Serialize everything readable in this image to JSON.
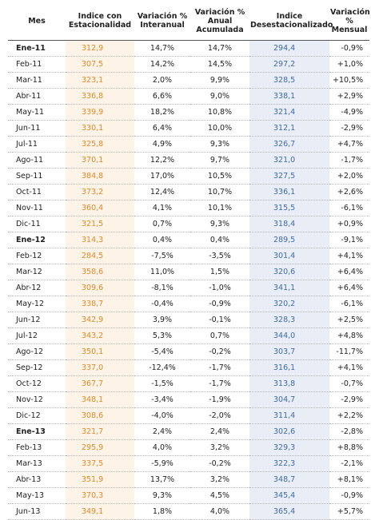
{
  "table": {
    "headers": [
      "Mes",
      "Indice con Estacionalidad",
      "Variación % Interanual",
      "Variación % Anual Acumulada",
      "Indice Desestacionalizado",
      "Variación % Mensual"
    ],
    "bold_rows": [
      0,
      12,
      24
    ],
    "rows": [
      [
        "Ene-11",
        "312,9",
        "14,7%",
        "14,7%",
        "294,4",
        "-0,9%"
      ],
      [
        "Feb-11",
        "307,5",
        "14,2%",
        "14,5%",
        "297,2",
        "+1,0%"
      ],
      [
        "Mar-11",
        "323,1",
        "2,0%",
        "9,9%",
        "328,5",
        "+10,5%"
      ],
      [
        "Abr-11",
        "336,8",
        "6,6%",
        "9,0%",
        "338,1",
        "+2,9%"
      ],
      [
        "May-11",
        "339,9",
        "18,2%",
        "10,8%",
        "321,4",
        "-4,9%"
      ],
      [
        "Jun-11",
        "330,1",
        "6,4%",
        "10,0%",
        "312,1",
        "-2,9%"
      ],
      [
        "Jul-11",
        "325,8",
        "4,9%",
        "9,3%",
        "326,7",
        "+4,7%"
      ],
      [
        "Ago-11",
        "370,1",
        "12,2%",
        "9,7%",
        "321,0",
        "-1,7%"
      ],
      [
        "Sep-11",
        "384,8",
        "17,0%",
        "10,5%",
        "327,5",
        "+2,0%"
      ],
      [
        "Oct-11",
        "373,2",
        "12,4%",
        "10,7%",
        "336,1",
        "+2,6%"
      ],
      [
        "Nov-11",
        "360,4",
        "4,1%",
        "10,1%",
        "315,5",
        "-6,1%"
      ],
      [
        "Dic-11",
        "321,5",
        "0,7%",
        "9,3%",
        "318,4",
        "+0,9%"
      ],
      [
        "Ene-12",
        "314,3",
        "0,4%",
        "0,4%",
        "289,5",
        "-9,1%"
      ],
      [
        "Feb-12",
        "284,5",
        "-7,5%",
        "-3,5%",
        "301,4",
        "+4,1%"
      ],
      [
        "Mar-12",
        "358,6",
        "11,0%",
        "1,5%",
        "320,6",
        "+6,4%"
      ],
      [
        "Abr-12",
        "309,6",
        "-8,1%",
        "-1,0%",
        "341,1",
        "+6,4%"
      ],
      [
        "May-12",
        "338,7",
        "-0,4%",
        "-0,9%",
        "320,2",
        "-6,1%"
      ],
      [
        "Jun-12",
        "342,9",
        "3,9%",
        "-0,1%",
        "328,3",
        "+2,5%"
      ],
      [
        "Jul-12",
        "343,2",
        "5,3%",
        "0,7%",
        "344,0",
        "+4,8%"
      ],
      [
        "Ago-12",
        "350,1",
        "-5,4%",
        "-0,2%",
        "303,7",
        "-11,7%"
      ],
      [
        "Sep-12",
        "337,0",
        "-12,4%",
        "-1,7%",
        "316,1",
        "+4,1%"
      ],
      [
        "Oct-12",
        "367,7",
        "-1,5%",
        "-1,7%",
        "313,8",
        "-0,7%"
      ],
      [
        "Nov-12",
        "348,1",
        "-3,4%",
        "-1,9%",
        "304,7",
        "-2,9%"
      ],
      [
        "Dic-12",
        "308,6",
        "-4,0%",
        "-2,0%",
        "311,4",
        "+2,2%"
      ],
      [
        "Ene-13",
        "321,7",
        "2,4%",
        "2,4%",
        "302,6",
        "-2,8%"
      ],
      [
        "Feb-13",
        "295,9",
        "4,0%",
        "3,2%",
        "329,3",
        "+8,8%"
      ],
      [
        "Mar-13",
        "337,5",
        "-5,9%",
        "-0,2%",
        "322,3",
        "-2,1%"
      ],
      [
        "Abr-13",
        "351,9",
        "13,7%",
        "3,2%",
        "348,7",
        "+8,1%"
      ],
      [
        "May-13",
        "370,3",
        "9,3%",
        "4,5%",
        "345,4",
        "-0,9%"
      ],
      [
        "Jun-13",
        "349,1",
        "1,8%",
        "4,0%",
        "365,4",
        "+5,7%"
      ]
    ]
  }
}
